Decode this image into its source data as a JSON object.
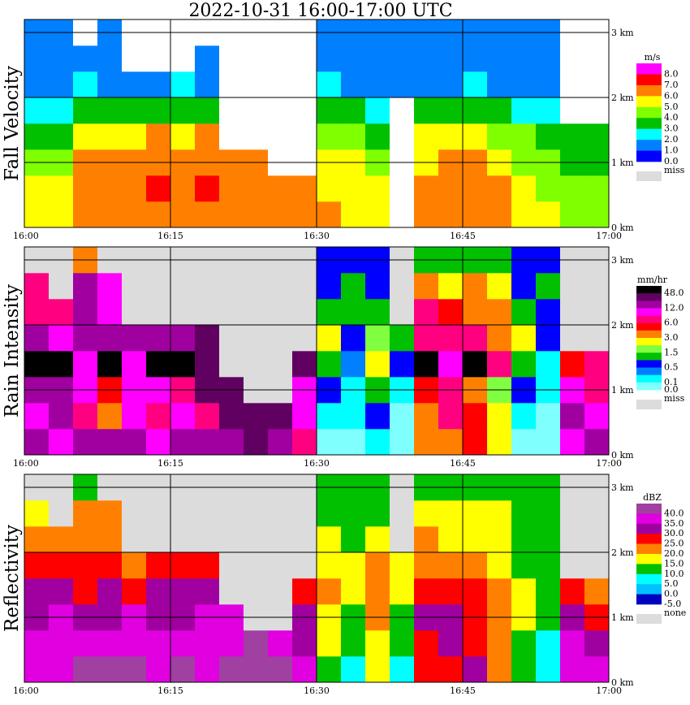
{
  "title": "2022-10-31   16:00-17:00 UTC",
  "chart_data": [
    {
      "type": "heatmap",
      "ylabel": "Fall Velocity",
      "x_ticks": [
        "16:00",
        "16:15",
        "16:30",
        "16:45",
        "17:00"
      ],
      "y_ticks": [
        "0 km",
        "1 km",
        "2 km",
        "3 km"
      ],
      "x_range_minutes": [
        0,
        60
      ],
      "y_range_km": [
        0,
        3.2
      ],
      "time_step_minutes": 2.5,
      "height_bins_km": [
        0,
        0.4,
        0.8,
        1.2,
        1.6,
        2.0,
        2.4,
        2.8
      ],
      "missing_color": "#ffffff",
      "legend": {
        "unit": "m/s",
        "colors": [
          "#ff00ff",
          "#ff0000",
          "#ff8000",
          "#ffff00",
          "#80ff00",
          "#00c000",
          "#00ffff",
          "#0080ff",
          "#0000ff"
        ],
        "lower_bounds": [
          8,
          7,
          6,
          5,
          4,
          3,
          2,
          1,
          0
        ],
        "labels": [
          {
            "text": "8.0",
            "after": 0
          },
          {
            "text": "7.0",
            "after": 1
          },
          {
            "text": "6.0",
            "after": 2
          },
          {
            "text": "5.0",
            "after": 3
          },
          {
            "text": "4.0",
            "after": 4
          },
          {
            "text": "3.0",
            "after": 5
          },
          {
            "text": "2.0",
            "after": 6
          },
          {
            "text": "1.0",
            "after": 7
          },
          {
            "text": "0.0",
            "after": 8
          }
        ],
        "missing_label": "miss",
        "missing_swatch": "#dcdcdc"
      },
      "values": [
        [
          5,
          5,
          6,
          6,
          6,
          6,
          6,
          6,
          6,
          6,
          6,
          6,
          6,
          5,
          5,
          null,
          6,
          6,
          6,
          6,
          5,
          5,
          4,
          4
        ],
        [
          5,
          5,
          6,
          6,
          6,
          7,
          6,
          7,
          6,
          6,
          6,
          6,
          5,
          5,
          5,
          null,
          6,
          6,
          6,
          6,
          5,
          4,
          4,
          4
        ],
        [
          4,
          4,
          6,
          6,
          6,
          6,
          6,
          6,
          6,
          6,
          null,
          null,
          5,
          5,
          4,
          null,
          5,
          6,
          6,
          5,
          4,
          4,
          3,
          3
        ],
        [
          3,
          3,
          5,
          5,
          5,
          6,
          5,
          6,
          null,
          null,
          null,
          null,
          4,
          4,
          3,
          null,
          5,
          5,
          5,
          4,
          4,
          3,
          3,
          3
        ],
        [
          2,
          2,
          3,
          3,
          3,
          3,
          3,
          3,
          null,
          null,
          null,
          null,
          3,
          3,
          2,
          null,
          3,
          3,
          3,
          3,
          2,
          2,
          null,
          null
        ],
        [
          1,
          1,
          2,
          1,
          1,
          1,
          2,
          1,
          null,
          null,
          null,
          null,
          2,
          1,
          1,
          1,
          1,
          1,
          2,
          1,
          1,
          1,
          null,
          null
        ],
        [
          1,
          1,
          1,
          1,
          null,
          null,
          null,
          1,
          null,
          null,
          null,
          null,
          1,
          1,
          1,
          1,
          1,
          1,
          1,
          1,
          1,
          1,
          null,
          null
        ],
        [
          1,
          1,
          null,
          1,
          null,
          null,
          null,
          null,
          null,
          null,
          null,
          null,
          1,
          1,
          1,
          1,
          1,
          1,
          1,
          1,
          1,
          1,
          null,
          null
        ]
      ]
    },
    {
      "type": "heatmap",
      "ylabel": "Rain Intensity",
      "x_ticks": [
        "16:00",
        "16:15",
        "16:30",
        "16:45",
        "17:00"
      ],
      "y_ticks": [
        "0 km",
        "1 km",
        "2 km",
        "3 km"
      ],
      "x_range_minutes": [
        0,
        60
      ],
      "y_range_km": [
        0,
        3.2
      ],
      "time_step_minutes": 2.5,
      "height_bins_km": [
        0,
        0.4,
        0.8,
        1.2,
        1.6,
        2.0,
        2.4,
        2.8
      ],
      "missing_color": "#dcdcdc",
      "legend": {
        "unit": "mm/hr",
        "colors": [
          "#000000",
          "#600060",
          "#a000a0",
          "#ff00ff",
          "#ff0080",
          "#ff0000",
          "#ff8000",
          "#ffff00",
          "#80ff40",
          "#00c000",
          "#0000ff",
          "#0080ff",
          "#00ffff",
          "#80ffff"
        ],
        "lower_bounds": [
          48,
          24,
          12,
          9,
          6,
          4.5,
          3,
          2,
          1.5,
          1,
          0.5,
          0.3,
          0.1,
          0
        ],
        "labels": [
          {
            "text": "48.0",
            "after": 0
          },
          {
            "text": "12.0",
            "after": 2
          },
          {
            "text": "6.0",
            "after": 4
          },
          {
            "text": "3.0",
            "after": 6
          },
          {
            "text": "1.5",
            "after": 8
          },
          {
            "text": "0.5",
            "after": 10
          },
          {
            "text": "0.1",
            "after": 12
          },
          {
            "text": "0.0",
            "after": 13
          }
        ],
        "missing_label": "miss",
        "missing_swatch": "#dcdcdc"
      },
      "values": [
        [
          12,
          10,
          12,
          15,
          12,
          10,
          12,
          12,
          12,
          24,
          12,
          8,
          0.05,
          0.05,
          0.2,
          0.05,
          3,
          4,
          5,
          2,
          0.05,
          0.05,
          10,
          12
        ],
        [
          10,
          12,
          8,
          3,
          10,
          8,
          10,
          8,
          24,
          24,
          30,
          10,
          0.2,
          0.1,
          0.5,
          0.05,
          4,
          6,
          5,
          2,
          0.1,
          0.05,
          12,
          10
        ],
        [
          12,
          15,
          10,
          5,
          10,
          10,
          6,
          30,
          30,
          null,
          null,
          10,
          0.5,
          0.2,
          1,
          0.1,
          5,
          6,
          4,
          1.5,
          0.5,
          0.1,
          10,
          8
        ],
        [
          48,
          48,
          10,
          48,
          10,
          48,
          48,
          30,
          null,
          null,
          null,
          30,
          1,
          0.3,
          2,
          0.5,
          48,
          10,
          48,
          8,
          1,
          0.2,
          5,
          8
        ],
        [
          12,
          10,
          15,
          12,
          12,
          15,
          15,
          24,
          null,
          null,
          null,
          null,
          2,
          0.5,
          1.5,
          1,
          8,
          6,
          6,
          4,
          2,
          0.5,
          null,
          null
        ],
        [
          8,
          8,
          12,
          10,
          null,
          null,
          null,
          null,
          null,
          null,
          null,
          null,
          1,
          1,
          1,
          null,
          6,
          5,
          4,
          3,
          1,
          0.5,
          null,
          null
        ],
        [
          6,
          null,
          12,
          10,
          null,
          null,
          null,
          null,
          null,
          null,
          null,
          null,
          0.5,
          1,
          0.5,
          null,
          3,
          2,
          3,
          2,
          0.5,
          1,
          null,
          null
        ],
        [
          null,
          null,
          3,
          null,
          null,
          null,
          null,
          null,
          null,
          null,
          null,
          null,
          0.5,
          0.5,
          0.5,
          null,
          1,
          1,
          1,
          1,
          0.5,
          0.5,
          null,
          null
        ]
      ]
    },
    {
      "type": "heatmap",
      "ylabel": "Reflectivity",
      "x_ticks": [
        "16:00",
        "16:15",
        "16:30",
        "16:45",
        "17:00"
      ],
      "y_ticks": [
        "0 km",
        "1 km",
        "2 km",
        "3 km"
      ],
      "x_range_minutes": [
        0,
        60
      ],
      "y_range_km": [
        0,
        3.2
      ],
      "time_step_minutes": 2.5,
      "height_bins_km": [
        0,
        0.4,
        0.8,
        1.2,
        1.6,
        2.0,
        2.4,
        2.8
      ],
      "missing_color": "#dcdcdc",
      "legend": {
        "unit": "dBZ",
        "colors": [
          "#a040a0",
          "#e000e0",
          "#a000a0",
          "#ff0000",
          "#ff8000",
          "#ffff00",
          "#00c000",
          "#00ffff",
          "#00c0ff",
          "#0000c0"
        ],
        "lower_bounds": [
          40,
          35,
          30,
          25,
          20,
          15,
          10,
          5,
          0,
          -5
        ],
        "labels": [
          {
            "text": "40.0",
            "after": 0
          },
          {
            "text": "35.0",
            "after": 1
          },
          {
            "text": "30.0",
            "after": 2
          },
          {
            "text": "25.0",
            "after": 3
          },
          {
            "text": "20.0",
            "after": 4
          },
          {
            "text": "15.0",
            "after": 5
          },
          {
            "text": "10.0",
            "after": 6
          },
          {
            "text": "5.0",
            "after": 7
          },
          {
            "text": "0.0",
            "after": 8
          },
          {
            "text": "-5.0",
            "after": 9
          }
        ],
        "missing_label": "none",
        "missing_swatch": "#dcdcdc"
      },
      "values": [
        [
          37,
          38,
          40,
          42,
          40,
          38,
          40,
          38,
          42,
          42,
          40,
          35,
          12,
          8,
          15,
          8,
          25,
          28,
          30,
          22,
          10,
          8,
          35,
          35
        ],
        [
          35,
          37,
          36,
          38,
          35,
          36,
          35,
          36,
          38,
          40,
          38,
          33,
          15,
          10,
          18,
          10,
          28,
          30,
          28,
          22,
          12,
          8,
          35,
          32
        ],
        [
          32,
          36,
          34,
          30,
          35,
          34,
          32,
          36,
          36,
          null,
          null,
          32,
          18,
          12,
          20,
          12,
          30,
          30,
          28,
          20,
          15,
          10,
          30,
          25
        ],
        [
          30,
          30,
          28,
          30,
          28,
          30,
          30,
          32,
          null,
          null,
          null,
          28,
          20,
          15,
          22,
          16,
          28,
          26,
          28,
          20,
          15,
          10,
          25,
          22
        ],
        [
          25,
          25,
          28,
          25,
          24,
          28,
          26,
          28,
          null,
          null,
          null,
          null,
          18,
          15,
          20,
          15,
          22,
          22,
          22,
          18,
          14,
          12,
          null,
          null
        ],
        [
          20,
          20,
          24,
          22,
          null,
          null,
          null,
          null,
          null,
          null,
          null,
          null,
          15,
          12,
          15,
          null,
          20,
          18,
          18,
          15,
          12,
          10,
          null,
          null
        ],
        [
          18,
          null,
          20,
          20,
          null,
          null,
          null,
          null,
          null,
          null,
          null,
          null,
          12,
          12,
          12,
          null,
          15,
          15,
          15,
          15,
          12,
          12,
          null,
          null
        ],
        [
          null,
          null,
          12,
          null,
          null,
          null,
          null,
          null,
          null,
          null,
          null,
          null,
          12,
          10,
          12,
          null,
          12,
          12,
          12,
          14,
          10,
          10,
          null,
          null
        ]
      ]
    }
  ]
}
